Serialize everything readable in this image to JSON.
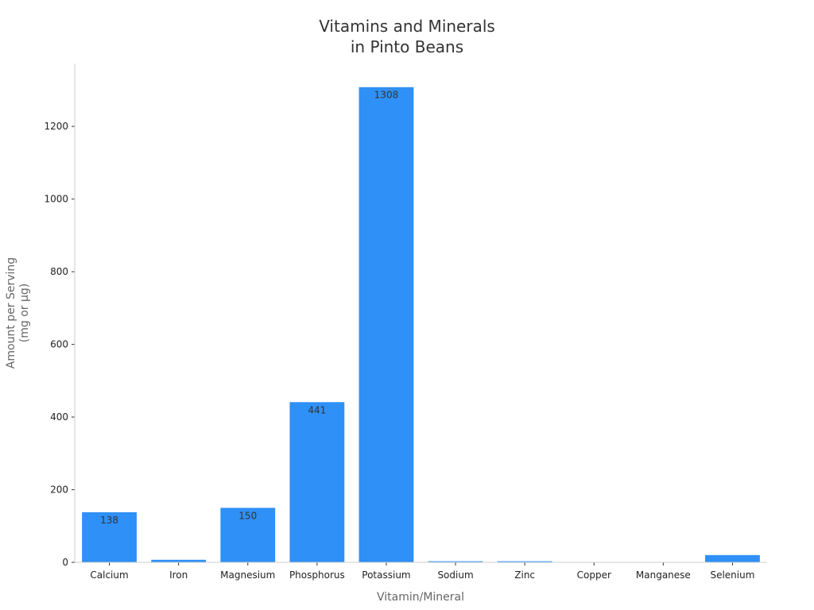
{
  "chart_data": {
    "type": "bar",
    "title_lines": [
      "Vitamins and Minerals",
      "in Pinto Beans"
    ],
    "xlabel": "Vitamin/Mineral",
    "ylabel_lines": [
      "Amount per Serving",
      "(mg or µg)"
    ],
    "categories": [
      "Calcium",
      "Iron",
      "Magnesium",
      "Phosphorus",
      "Potassium",
      "Sodium",
      "Zinc",
      "Copper",
      "Manganese",
      "Selenium"
    ],
    "values": [
      138,
      7,
      150,
      441,
      1308,
      3,
      3,
      1,
      1,
      20
    ],
    "data_labels": [
      "138",
      "",
      "150",
      "441",
      "1308",
      "",
      "",
      "",
      "",
      ""
    ],
    "yticks": [
      0,
      200,
      400,
      600,
      800,
      1000,
      1200
    ],
    "ylim": [
      0,
      1373
    ],
    "grid": false,
    "bar_color": "#2f90f7"
  }
}
